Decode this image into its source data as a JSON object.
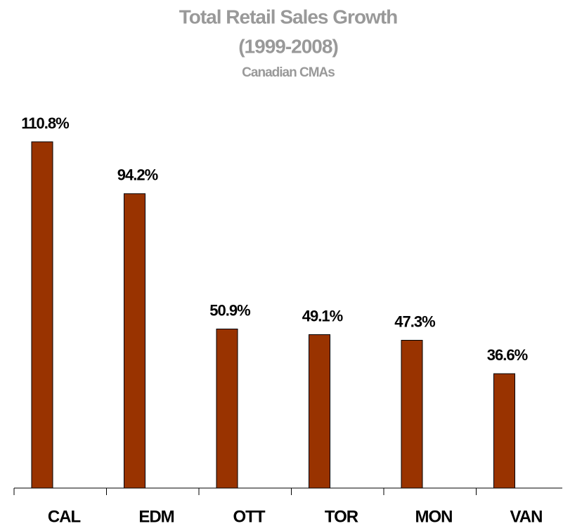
{
  "chart_data": {
    "type": "bar",
    "title": "Total Retail Sales Growth",
    "title_line2": "(1999-2008)",
    "subtitle": "Canadian CMAs",
    "categories": [
      "CAL",
      "EDM",
      "OTT",
      "TOR",
      "MON",
      "VAN"
    ],
    "values": [
      110.8,
      94.2,
      50.9,
      49.1,
      47.3,
      36.6
    ],
    "value_labels": [
      "110.8%",
      "94.2%",
      "50.9%",
      "49.1%",
      "47.3%",
      "36.6%"
    ],
    "color": "#993300"
  }
}
